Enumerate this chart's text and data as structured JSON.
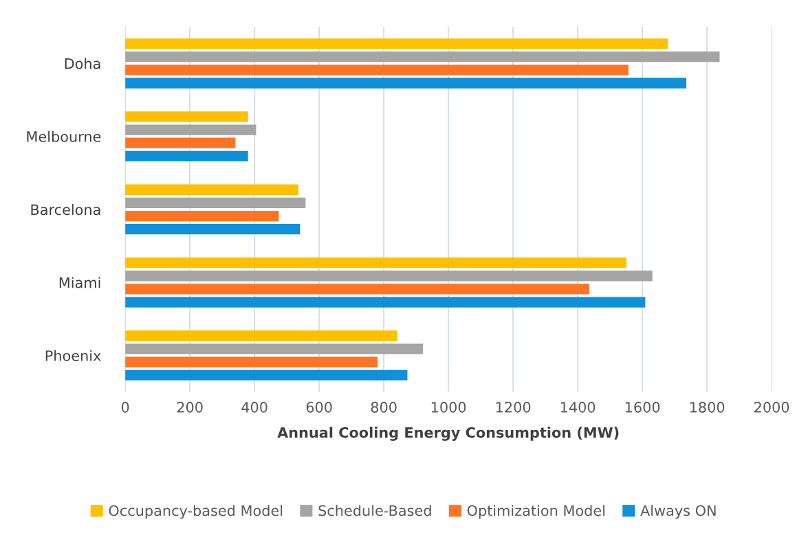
{
  "chart_data": {
    "type": "bar",
    "orientation": "horizontal",
    "xlabel": "Annual Cooling Energy Consumption (MW)",
    "categories": [
      "Doha",
      "Melbourne",
      "Barcelona",
      "Miami",
      "Phoenix"
    ],
    "series": [
      {
        "name": "Occupancy-based Model",
        "color": "#ffc000",
        "values": [
          1679,
          380,
          536,
          1551,
          842
        ]
      },
      {
        "name": "Schedule-Based",
        "color": "#a5a5a5",
        "values": [
          1839,
          405,
          558,
          1631,
          921
        ]
      },
      {
        "name": "Optimization Model",
        "color": "#ff7424",
        "values": [
          1557,
          341,
          475,
          1436,
          781
        ]
      },
      {
        "name": "Always ON",
        "color": "#0f90d8",
        "values": [
          1736,
          380,
          541,
          1609,
          873
        ]
      }
    ],
    "xlim": [
      0,
      2000
    ],
    "xticks": [
      0,
      200,
      400,
      600,
      800,
      1000,
      1200,
      1400,
      1600,
      1800,
      2000
    ],
    "grid": "x",
    "legend": "bottom"
  }
}
